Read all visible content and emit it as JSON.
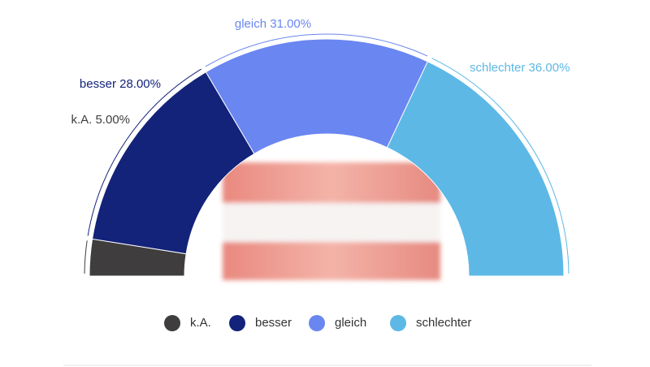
{
  "chart_data": {
    "type": "semi-donut",
    "categories": [
      "k.A.",
      "besser",
      "gleich",
      "schlechter"
    ],
    "values": [
      5,
      28,
      31,
      36
    ],
    "value_labels": [
      "k.A. 5.00%",
      "besser 28.00%",
      "gleich 31.00%",
      "schlechter 36.00%"
    ],
    "colors": [
      "#3f3d3d",
      "#13237a",
      "#6a86f0",
      "#5db8e6"
    ],
    "legend": "bottom"
  }
}
